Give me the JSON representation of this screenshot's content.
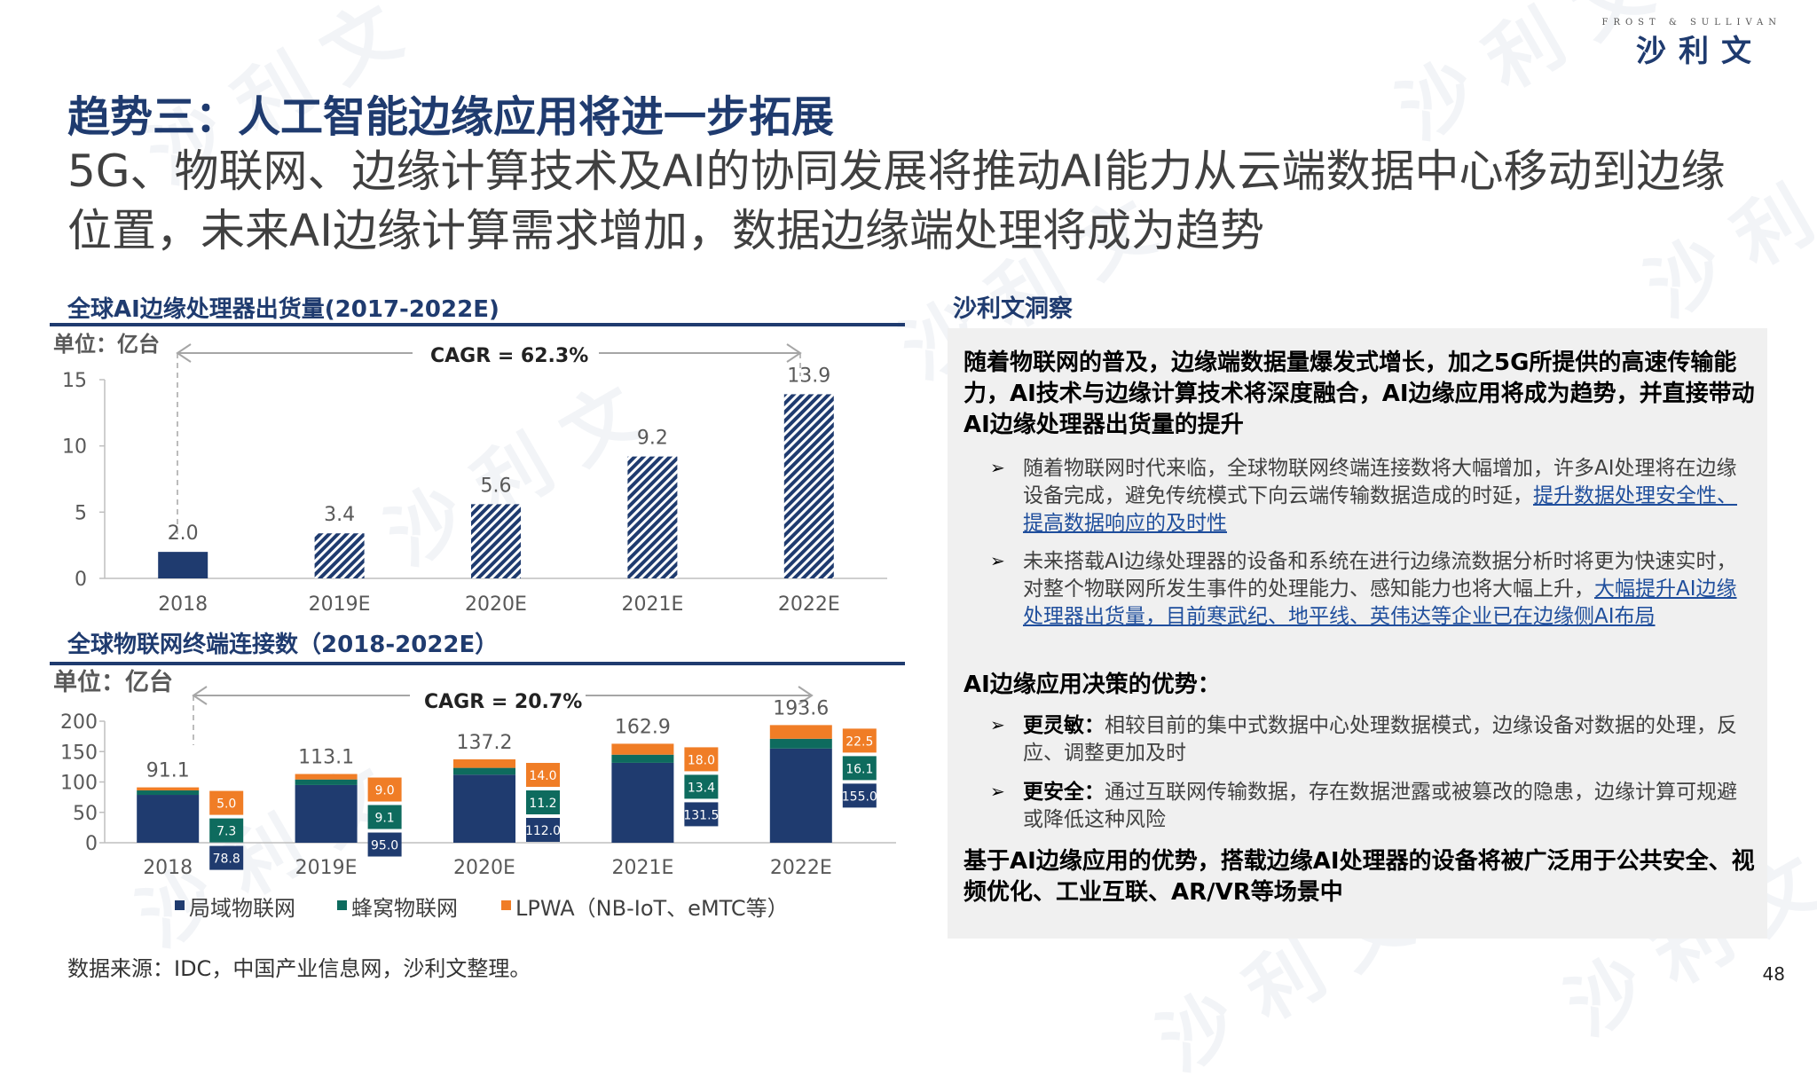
{
  "header": {
    "logo_small": "FROST & SULLIVAN",
    "logo_cn": "沙利文",
    "title": "趋势三：人工智能边缘应用将进一步拓展",
    "subtitle": "5G、物联网、边缘计算技术及AI的协同发展将推动AI能力从云端数据中心移动到边缘位置，未来AI边缘计算需求增加，数据边缘端处理将成为趋势"
  },
  "colors": {
    "navy": "#1f3b6f",
    "teal": "#0e6b5e",
    "orange": "#f07d26",
    "panel": "#f0f0f0"
  },
  "chart_data": [
    {
      "type": "bar",
      "title": "全球AI边缘处理器出货量(2017-2022E)",
      "unit": "单位：亿台",
      "cagr": "CAGR = 62.3%",
      "categories": [
        "2018",
        "2019E",
        "2020E",
        "2021E",
        "2022E"
      ],
      "values": [
        2.0,
        3.4,
        5.6,
        9.2,
        13.9
      ],
      "value_labels": [
        "2.0",
        "3.4",
        "5.6",
        "9.2",
        "13.9"
      ],
      "yticks": [
        "0",
        "5",
        "10",
        "15"
      ],
      "ylim": [
        0,
        15
      ],
      "legend": "none",
      "grid": false
    },
    {
      "type": "bar",
      "stacked": true,
      "title": "全球物联网终端连接数（2018-2022E）",
      "unit": "单位：亿台",
      "cagr": "CAGR = 20.7%",
      "categories": [
        "2018",
        "2019E",
        "2020E",
        "2021E",
        "2022E"
      ],
      "series": [
        {
          "name": "局域物联网",
          "values": [
            78.8,
            95.0,
            112.0,
            131.5,
            155.0
          ],
          "labels": [
            "78.8",
            "95.0",
            "112.0",
            "131.5",
            "155.0"
          ]
        },
        {
          "name": "蜂窝物联网",
          "values": [
            7.3,
            9.1,
            11.2,
            13.4,
            16.1
          ],
          "labels": [
            "7.3",
            "9.1",
            "11.2",
            "13.4",
            "16.1"
          ]
        },
        {
          "name": "LPWA（NB-IoT、eMTC等）",
          "values": [
            5.0,
            9.0,
            14.0,
            18.0,
            22.5
          ],
          "labels": [
            "5.0",
            "9.0",
            "14.0",
            "18.0",
            "22.5"
          ]
        }
      ],
      "totals": [
        "91.1",
        "113.1",
        "137.2",
        "162.9",
        "193.6"
      ],
      "yticks": [
        "0",
        "50",
        "100",
        "150",
        "200"
      ],
      "ylim": [
        0,
        200
      ],
      "legend": "bottom",
      "grid": false
    }
  ],
  "insight": {
    "heading": "沙利文洞察",
    "p1": "随着物联网的普及，边缘端数据量爆发式增长，加之5G所提供的高速传输能力，AI技术与边缘计算技术将深度融合，AI边缘应用将成为趋势，并直接带动AI边缘处理器出货量的提升",
    "b1_text": "随着物联网时代来临，全球物联网终端连接数将大幅增加，许多AI处理将在边缘设备完成，避免传统模式下向云端传输数据造成的时延，",
    "b1_link": "提升数据处理安全性、提高数据响应的及时性",
    "b2_text": "未来搭载AI边缘处理器的设备和系统在进行边缘流数据分析时将更为快速实时，对整个物联网所发生事件的处理能力、感知能力也将大幅上升，",
    "b2_link": "大幅提升AI边缘处理器出货量，目前寒武纪、地平线、英伟达等企业已在边缘侧AI布局",
    "h2": "AI边缘应用决策的优势：",
    "b3_bold": "更灵敏：",
    "b3_text": "相较目前的集中式数据中心处理数据模式，边缘设备对数据的处理，反应、调整更加及时",
    "b4_bold": "更安全：",
    "b4_text": "通过互联网传输数据，存在数据泄露或被篡改的隐患，边缘计算可规避或降低这种风险",
    "p_final": "基于AI边缘应用的优势，搭载边缘AI处理器的设备将被广泛用于公共安全、视频优化、工业互联、AR/VR等场景中"
  },
  "footer": {
    "source": "数据来源：IDC，中国产业信息网，沙利文整理。",
    "page": "48"
  }
}
